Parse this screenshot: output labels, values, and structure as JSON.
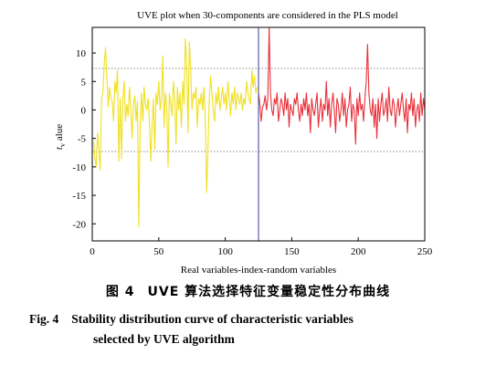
{
  "chart_data": {
    "type": "line",
    "title": "UVE plot when 30-components are considered in the PLS model",
    "xlabel": "Real variables-index-random variables",
    "ylabel_main": "t",
    "ylabel_sub": "v",
    "ylabel_rest": " alue",
    "xlim": [
      0,
      250
    ],
    "ylim": [
      -23,
      14.5
    ],
    "x_ticks": [
      0,
      50,
      100,
      150,
      200,
      250
    ],
    "x_tick_labels": [
      "0",
      "50",
      "100",
      "150",
      "200",
      "250"
    ],
    "y_ticks": [
      10,
      5,
      0,
      -5,
      -10,
      -15,
      -20
    ],
    "y_tick_labels": [
      "10",
      "5",
      "0",
      "-5",
      "-10",
      "-15",
      "-20"
    ],
    "threshold_upper": 7.3,
    "threshold_lower": -7.3,
    "divider_x": 125,
    "colors": {
      "real": "#f0e020",
      "random": "#e8303a",
      "divider": "#5a5aa8",
      "threshold": "#777777"
    },
    "series": [
      {
        "key": "real",
        "start_x": 1,
        "values": [
          -5.5,
          -8.5,
          -10,
          -4,
          -7,
          -10.5,
          2,
          3,
          8,
          11,
          5.5,
          0.5,
          4,
          2,
          1.5,
          -2,
          5,
          3,
          7,
          -9,
          2,
          -8.5,
          2,
          5,
          -2,
          1,
          -1,
          4,
          0,
          -5,
          1,
          2.5,
          -2,
          1.5,
          -20.5,
          -3,
          3,
          -2,
          4,
          1,
          0,
          2,
          -2,
          -9,
          -2.5,
          2,
          -7,
          3,
          1,
          5,
          0,
          2,
          9.5,
          -3,
          3,
          0.5,
          -10,
          3,
          1,
          -1,
          5,
          2,
          -6,
          4,
          0,
          3,
          -3,
          5,
          1,
          12.5,
          8,
          -4,
          12,
          7,
          0,
          3,
          2,
          4,
          -3,
          2,
          1,
          3,
          0,
          4,
          -2,
          -14.5,
          -7,
          2,
          6,
          3,
          0,
          -2,
          3,
          1,
          4,
          0,
          2,
          4,
          1,
          3,
          0,
          5,
          2,
          -1,
          3,
          1,
          4,
          0,
          3,
          2,
          1,
          3,
          0,
          2,
          1,
          5,
          3,
          2,
          1,
          7,
          4,
          6,
          3,
          4
        ]
      },
      {
        "key": "random",
        "start_x": 125,
        "values": [
          3,
          1,
          -2,
          0.5,
          1,
          2.5,
          0,
          2,
          14.5,
          3,
          0,
          -1,
          2,
          1,
          3,
          -2,
          0,
          2,
          1,
          -1,
          3,
          0,
          2,
          -3,
          1,
          0,
          -1,
          2,
          1,
          3,
          0,
          -2,
          1,
          -1,
          2,
          0,
          3,
          -1,
          1,
          -4,
          2,
          0,
          -1,
          1,
          3,
          -3,
          0,
          2,
          -2,
          1,
          0,
          5,
          -1,
          2,
          -3,
          1,
          3,
          0,
          -4,
          2,
          1,
          -2,
          0,
          3,
          -1,
          2,
          -3,
          0,
          1,
          4,
          -2,
          1,
          0,
          -6,
          2,
          -1,
          3,
          0,
          1,
          -2,
          2,
          5,
          11.5,
          3,
          0,
          -1,
          2,
          -3,
          1,
          -5,
          2,
          -2,
          1,
          3,
          -1,
          0,
          2,
          -2,
          4,
          0,
          -1,
          2,
          1,
          -3,
          0,
          2,
          -1,
          1,
          3,
          0,
          -2,
          2,
          -4,
          1,
          0,
          3,
          -1,
          2,
          -3,
          0,
          1,
          -2,
          3,
          -1,
          2,
          0
        ]
      }
    ]
  },
  "caption": {
    "cn_label": "图 4",
    "cn_text": "UVE 算法选择特征变量稳定性分布曲线",
    "en_label": "Fig. 4",
    "en_text_line1": "Stability distribution curve of characteristic variables",
    "en_text_line2": "selected by UVE algorithm"
  }
}
